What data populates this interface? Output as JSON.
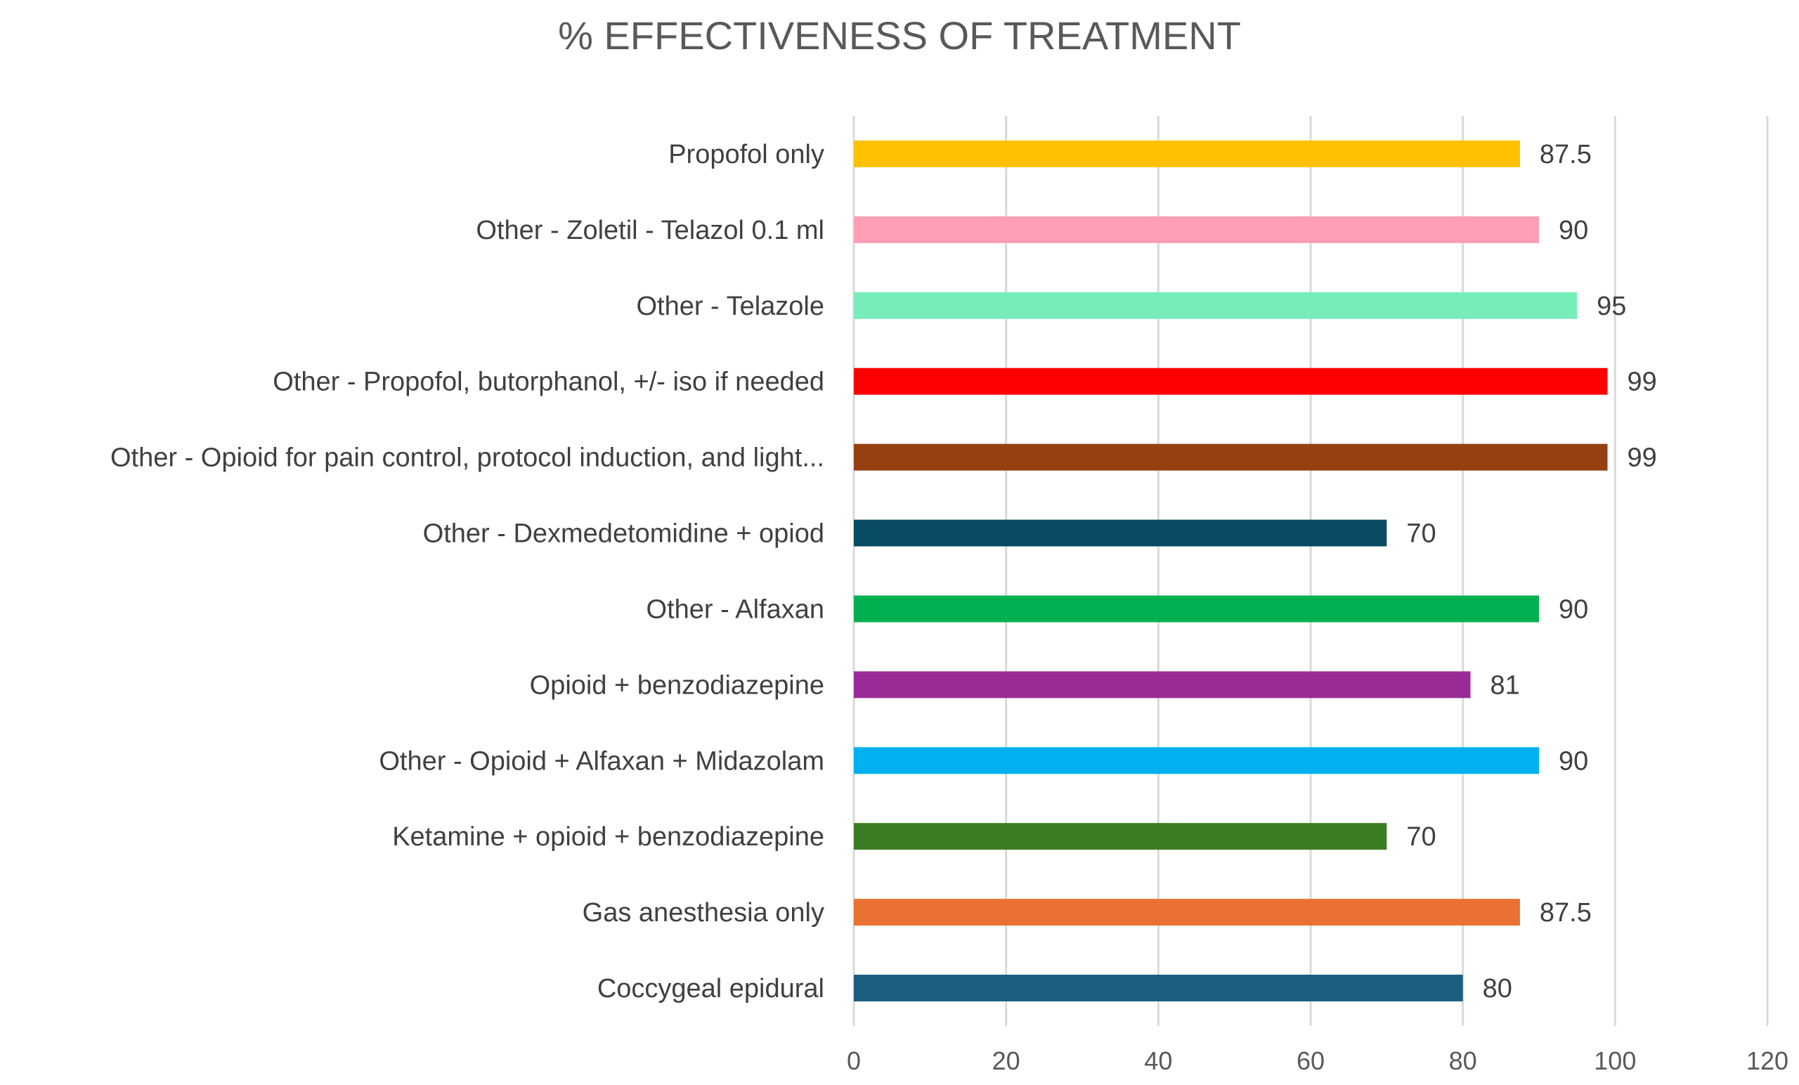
{
  "chart_data": {
    "type": "bar",
    "orientation": "horizontal",
    "title": "% EFFECTIVENESS OF TREATMENT",
    "categories": [
      "Propofol only",
      "Other - Zoletil - Telazol 0.1 ml",
      "Other - Telazole",
      "Other - Propofol, butorphanol, +/- iso if needed",
      "Other - Opioid for pain control, protocol induction,  and light...",
      "Other - Dexmedetomidine + opiod",
      "Other - Alfaxan",
      "Opioid + benzodiazepine",
      "Other - Opioid + Alfaxan + Midazolam",
      "Ketamine + opioid + benzodiazepine",
      "Gas anesthesia only",
      "Coccygeal epidural"
    ],
    "values": [
      87.5,
      90,
      95,
      99,
      99,
      70,
      90,
      81,
      90,
      70,
      87.5,
      80
    ],
    "value_labels": [
      "87.5",
      "90",
      "95",
      "99",
      "99",
      "70",
      "90",
      "81",
      "90",
      "70",
      "87.5",
      "80"
    ],
    "colors": [
      "#FFC000",
      "#FF9EB5",
      "#77EDBA",
      "#FF0000",
      "#974011",
      "#084B63",
      "#00B050",
      "#9B2B96",
      "#00B0F0",
      "#3B7D23",
      "#E97132",
      "#1A5E80"
    ],
    "xlim": [
      0,
      120
    ],
    "xticks": [
      0,
      20,
      40,
      60,
      80,
      100,
      120
    ],
    "xtick_labels": [
      "0",
      "20",
      "40",
      "60",
      "80",
      "100",
      "120"
    ],
    "xlabel": "",
    "ylabel": "",
    "grid": true,
    "legend": "none"
  }
}
